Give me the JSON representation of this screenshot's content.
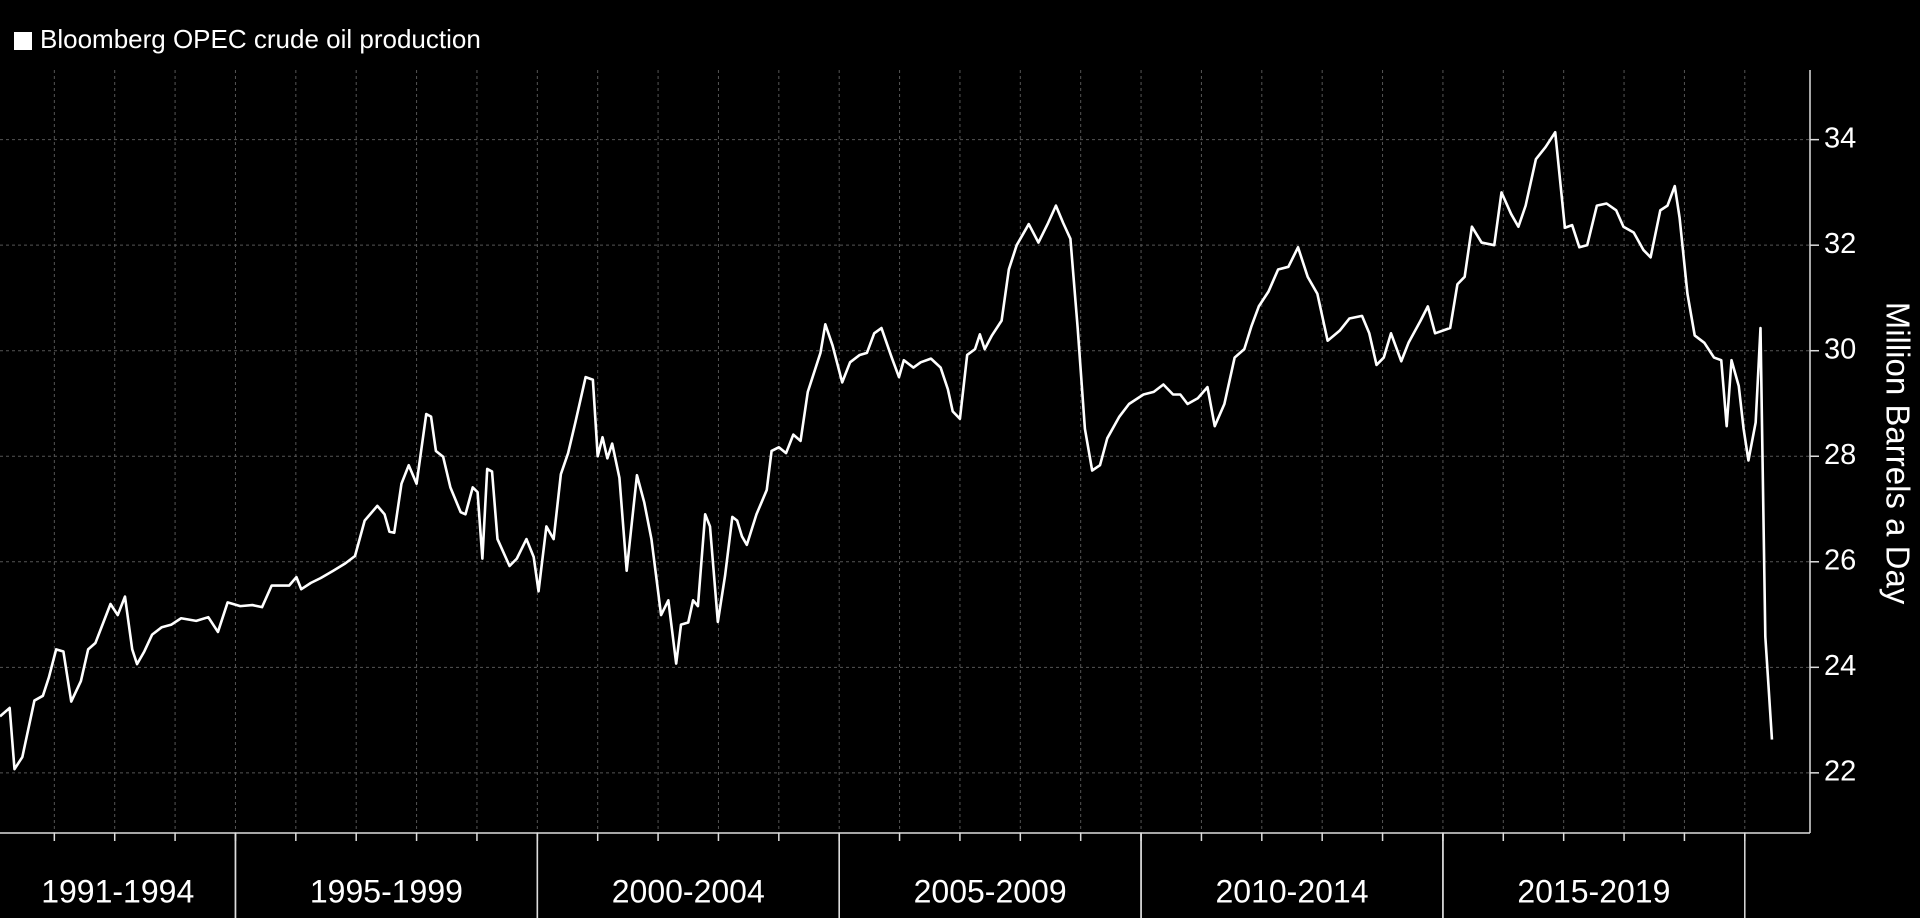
{
  "chart_data": {
    "type": "line",
    "y_label": "Million Barrels a Day",
    "x": [
      1991.1,
      1991.26,
      1991.34,
      1991.47,
      1991.67,
      1991.81,
      1991.91,
      1992.03,
      1992.15,
      1992.28,
      1992.44,
      1992.56,
      1992.68,
      1992.93,
      1993.05,
      1993.17,
      1993.29,
      1993.37,
      1993.49,
      1993.62,
      1993.78,
      1993.94,
      1994.1,
      1994.35,
      1994.55,
      1994.71,
      1994.87,
      1995.08,
      1995.28,
      1995.44,
      1995.6,
      1995.89,
      1996.01,
      1996.09,
      1996.25,
      1996.41,
      1996.62,
      1996.82,
      1996.98,
      1997.14,
      1997.35,
      1997.47,
      1997.55,
      1997.63,
      1997.75,
      1997.87,
      1998.0,
      1998.16,
      1998.24,
      1998.32,
      1998.44,
      1998.56,
      1998.73,
      1998.81,
      1998.93,
      1999.01,
      1999.09,
      1999.17,
      1999.25,
      1999.34,
      1999.54,
      1999.66,
      1999.82,
      1999.94,
      2000.02,
      2000.15,
      2000.27,
      2000.39,
      2000.51,
      2000.63,
      2000.8,
      2000.92,
      2001.0,
      2001.08,
      2001.16,
      2001.24,
      2001.36,
      2001.48,
      2001.65,
      2001.77,
      2001.89,
      2002.05,
      2002.17,
      2002.3,
      2002.38,
      2002.5,
      2002.58,
      2002.66,
      2002.78,
      2002.86,
      2002.99,
      2003.11,
      2003.23,
      2003.31,
      2003.39,
      2003.47,
      2003.63,
      2003.8,
      2003.88,
      2004.0,
      2004.12,
      2004.24,
      2004.36,
      2004.48,
      2004.69,
      2004.77,
      2004.89,
      2005.05,
      2005.18,
      2005.34,
      2005.46,
      2005.58,
      2005.7,
      2005.87,
      2005.99,
      2006.07,
      2006.23,
      2006.35,
      2006.52,
      2006.68,
      2006.8,
      2006.88,
      2007.0,
      2007.12,
      2007.25,
      2007.33,
      2007.41,
      2007.53,
      2007.69,
      2007.81,
      2007.94,
      2008.14,
      2008.3,
      2008.46,
      2008.59,
      2008.71,
      2008.83,
      2008.95,
      2009.07,
      2009.19,
      2009.32,
      2009.44,
      2009.64,
      2009.8,
      2010.04,
      2010.21,
      2010.37,
      2010.53,
      2010.65,
      2010.77,
      2010.94,
      2011.1,
      2011.22,
      2011.38,
      2011.55,
      2011.71,
      2011.83,
      2011.95,
      2012.11,
      2012.27,
      2012.44,
      2012.6,
      2012.76,
      2012.92,
      2013.09,
      2013.29,
      2013.45,
      2013.66,
      2013.78,
      2013.9,
      2014.02,
      2014.14,
      2014.31,
      2014.43,
      2014.63,
      2014.75,
      2014.87,
      2015.12,
      2015.24,
      2015.36,
      2015.48,
      2015.64,
      2015.85,
      2015.97,
      2016.13,
      2016.25,
      2016.37,
      2016.54,
      2016.7,
      2016.86,
      2017.02,
      2017.14,
      2017.26,
      2017.39,
      2017.55,
      2017.71,
      2017.87,
      2017.99,
      2018.16,
      2018.32,
      2018.44,
      2018.6,
      2018.72,
      2018.84,
      2018.92,
      2019.05,
      2019.17,
      2019.33,
      2019.49,
      2019.61,
      2019.7,
      2019.78,
      2019.9,
      2019.98,
      2020.06,
      2020.18,
      2020.26,
      2020.34,
      2020.45
    ],
    "series": [
      {
        "name": "Bloomberg OPEC crude oil production",
        "color": "#ffffff",
        "values": [
          23.07,
          23.23,
          22.07,
          22.3,
          23.37,
          23.46,
          23.81,
          24.34,
          24.3,
          23.35,
          23.74,
          24.34,
          24.46,
          25.2,
          24.99,
          25.34,
          24.34,
          24.06,
          24.3,
          24.62,
          24.76,
          24.81,
          24.93,
          24.88,
          24.95,
          24.67,
          25.23,
          25.16,
          25.18,
          25.14,
          25.55,
          25.55,
          25.71,
          25.48,
          25.6,
          25.69,
          25.83,
          25.97,
          26.11,
          26.78,
          27.06,
          26.9,
          26.57,
          26.55,
          27.48,
          27.83,
          27.48,
          28.8,
          28.75,
          28.1,
          27.99,
          27.41,
          26.94,
          26.9,
          27.41,
          27.32,
          26.06,
          27.76,
          27.71,
          26.43,
          25.92,
          26.06,
          26.43,
          26.09,
          25.44,
          26.67,
          26.43,
          27.66,
          28.06,
          28.64,
          29.5,
          29.45,
          28.0,
          28.36,
          27.96,
          28.24,
          27.59,
          25.83,
          27.64,
          27.13,
          26.43,
          24.99,
          25.27,
          24.07,
          24.81,
          24.85,
          25.27,
          25.16,
          26.9,
          26.67,
          24.86,
          25.74,
          26.85,
          26.78,
          26.48,
          26.32,
          26.9,
          27.36,
          28.1,
          28.17,
          28.06,
          28.41,
          28.29,
          29.22,
          29.96,
          30.5,
          30.1,
          29.4,
          29.78,
          29.92,
          29.96,
          30.33,
          30.43,
          29.87,
          29.5,
          29.82,
          29.68,
          29.78,
          29.85,
          29.68,
          29.27,
          28.85,
          28.71,
          29.92,
          30.03,
          30.31,
          30.03,
          30.29,
          30.57,
          31.54,
          32.0,
          32.4,
          32.05,
          32.42,
          32.75,
          32.42,
          32.12,
          30.43,
          28.52,
          27.73,
          27.83,
          28.34,
          28.75,
          28.99,
          29.17,
          29.22,
          29.36,
          29.17,
          29.17,
          28.99,
          29.1,
          29.31,
          28.57,
          28.99,
          29.87,
          30.03,
          30.47,
          30.84,
          31.12,
          31.54,
          31.59,
          31.96,
          31.4,
          31.08,
          30.19,
          30.38,
          30.61,
          30.66,
          30.33,
          29.73,
          29.87,
          30.33,
          29.8,
          30.15,
          30.57,
          30.84,
          30.33,
          30.43,
          31.26,
          31.4,
          32.35,
          32.05,
          32.0,
          33.0,
          32.59,
          32.35,
          32.75,
          33.63,
          33.86,
          34.14,
          32.33,
          32.38,
          31.96,
          32.0,
          32.75,
          32.79,
          32.66,
          32.35,
          32.24,
          31.91,
          31.77,
          32.66,
          32.75,
          33.12,
          32.52,
          31.08,
          30.29,
          30.15,
          29.87,
          29.82,
          28.57,
          29.82,
          29.33,
          28.52,
          27.92,
          28.64,
          30.43,
          24.58,
          22.63
        ]
      }
    ],
    "xlim": [
      1991.1,
      2021.08
    ],
    "xticks": [
      1992,
      1993,
      1994,
      1995,
      1996,
      1997,
      1998,
      1999,
      2000,
      2001,
      2002,
      2003,
      2004,
      2005,
      2006,
      2007,
      2008,
      2009,
      2010,
      2011,
      2012,
      2013,
      2014,
      2015,
      2016,
      2017,
      2018,
      2019,
      2020
    ],
    "xperiods": [
      {
        "label": "1991-1994",
        "start": 1991,
        "end": 1995
      },
      {
        "label": "1995-1999",
        "start": 1995,
        "end": 2000
      },
      {
        "label": "2000-2004",
        "start": 2000,
        "end": 2005
      },
      {
        "label": "2005-2009",
        "start": 2005,
        "end": 2010
      },
      {
        "label": "2010-2014",
        "start": 2010,
        "end": 2015
      },
      {
        "label": "2015-2019",
        "start": 2015,
        "end": 2020
      }
    ],
    "ylim": [
      20.86,
      35.32
    ],
    "yticks": [
      22,
      24,
      26,
      28,
      30,
      32,
      34
    ],
    "grid": true,
    "legend": "top-left"
  }
}
